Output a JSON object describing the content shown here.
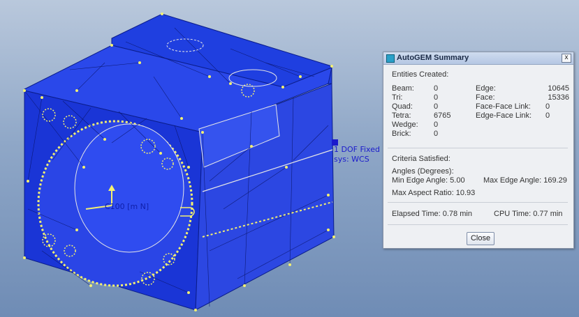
{
  "viewport": {
    "constraint_label_1": "1 DOF Fixed",
    "constraint_label_2": "sys: WCS",
    "load_label": "C100 [m N]"
  },
  "dialog": {
    "title": "AutoGEM Summary",
    "close_x": "x",
    "entities_heading": "Entities Created:",
    "entities_left": [
      {
        "label": "Beam:",
        "value": "0"
      },
      {
        "label": "Tri:",
        "value": "0"
      },
      {
        "label": "Quad:",
        "value": "0"
      },
      {
        "label": "Tetra:",
        "value": "6765"
      },
      {
        "label": "Wedge:",
        "value": "0"
      },
      {
        "label": "Brick:",
        "value": "0"
      }
    ],
    "entities_right": [
      {
        "label": "Edge:",
        "value": "10645"
      },
      {
        "label": "Face:",
        "value": "15336"
      },
      {
        "label": "Face-Face Link:",
        "value": "0"
      },
      {
        "label": "Edge-Face Link:",
        "value": "0"
      }
    ],
    "criteria_heading": "Criteria Satisfied:",
    "angles_heading": "Angles (Degrees):",
    "min_edge_angle": "Min Edge Angle:  5.00",
    "max_edge_angle": "Max Edge Angle: 169.29",
    "max_aspect_ratio": "Max Aspect Ratio: 10.93",
    "elapsed_time": "Elapsed Time:  0.78 min",
    "cpu_time": "CPU Time:  0.77 min",
    "close_button": "Close"
  }
}
